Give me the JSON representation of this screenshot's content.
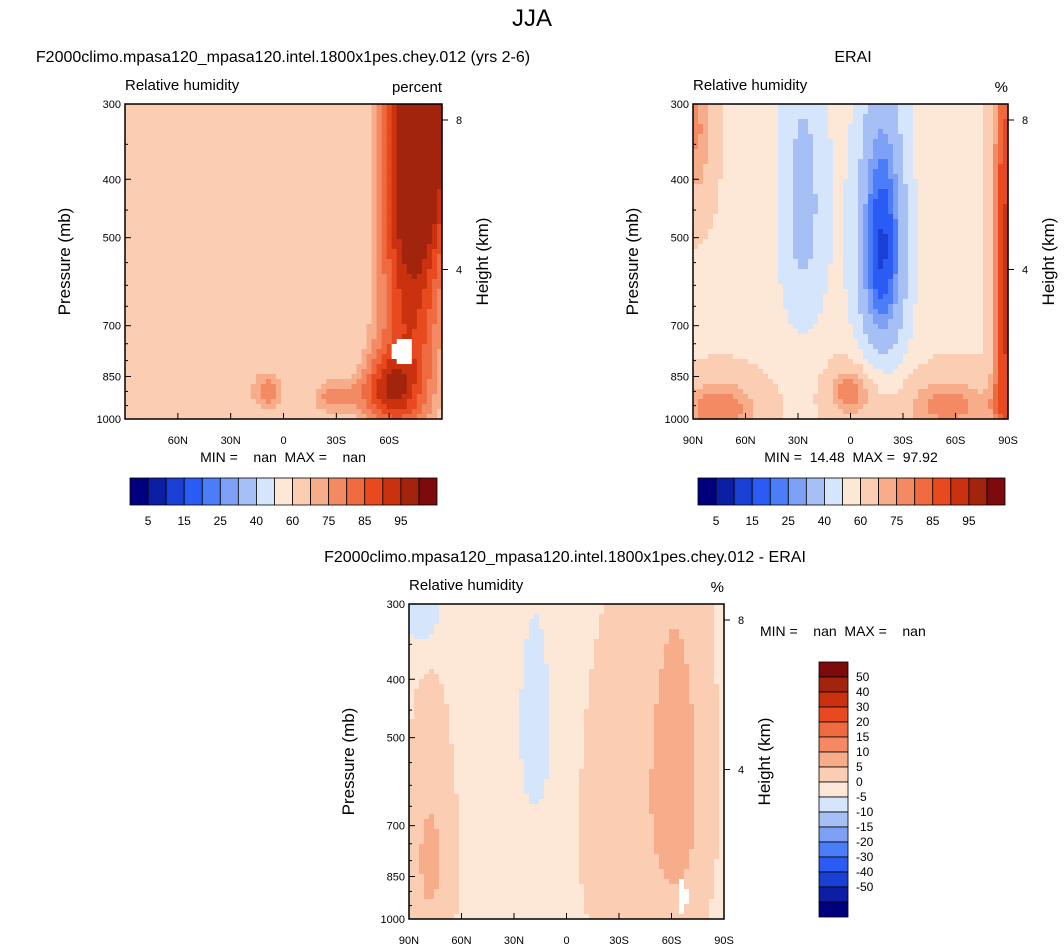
{
  "page": {
    "title": "JJA"
  },
  "colors": {
    "abs": [
      "#00007f",
      "#0c1ea3",
      "#1a3fd4",
      "#2a5cf5",
      "#4a7df7",
      "#7d9ff5",
      "#a6bff5",
      "#d5e5fb",
      "#fde8d8",
      "#fbcdb3",
      "#f7ac8a",
      "#f38a64",
      "#ef6a3e",
      "#e8491f",
      "#c9310f",
      "#a3240c",
      "#7d0b0b"
    ],
    "diff": [
      "#00007f",
      "#0c1ea3",
      "#1a3fd4",
      "#2a5cf5",
      "#4a7df7",
      "#7d9ff5",
      "#a6bff5",
      "#d5e5fb",
      "#fde8d8",
      "#fbcdb3",
      "#f7ac8a",
      "#f38a64",
      "#ef6a3e",
      "#e8491f",
      "#c9310f",
      "#a3240c",
      "#7d0b0b"
    ]
  },
  "chart_data": [
    {
      "id": "model",
      "type": "heatmap",
      "title": "F2000climo.mpasa120_mpasa120.intel.1800x1pes.chey.012 (yrs 2-6)",
      "left_label": "Relative humidity",
      "right_label": "percent",
      "ylabel": "Pressure (mb)",
      "ylabel2": "Height (km)",
      "x_ticks": [
        "60N",
        "30N",
        "0",
        "30S",
        "60S"
      ],
      "x_tick_values": [
        60,
        30,
        0,
        -30,
        -60
      ],
      "y_ticks": [
        "300",
        "400",
        "500",
        "700",
        "850",
        "1000"
      ],
      "y_tick_values": [
        300,
        400,
        500,
        700,
        850,
        1000
      ],
      "height_ticks": [
        "8",
        "4"
      ],
      "height_tick_values": [
        8,
        4
      ],
      "xlim": [
        90,
        -90
      ],
      "ylim": [
        1000,
        300
      ],
      "stats": "MIN =    nan  MAX =    nan",
      "colorbar_labels": [
        "5",
        "15",
        "25",
        "40",
        "60",
        "75",
        "85",
        "95"
      ],
      "levels": [
        5,
        10,
        15,
        20,
        25,
        30,
        40,
        50,
        60,
        70,
        75,
        80,
        85,
        90,
        95
      ],
      "field": {
        "base": 60,
        "blobs": [
          {
            "lat": -80,
            "p": 330,
            "sx": 14,
            "sp": 140,
            "a": 30
          },
          {
            "lat": -72,
            "p": 600,
            "sx": 15,
            "sp": 350,
            "a": 30
          },
          {
            "lat": -58,
            "p": 900,
            "sx": 12,
            "sp": 90,
            "a": 22
          },
          {
            "lat": 9,
            "p": 900,
            "sx": 8,
            "sp": 60,
            "a": 18
          },
          {
            "lat": -28,
            "p": 920,
            "sx": 10,
            "sp": 50,
            "a": 17
          }
        ],
        "mask": [
          {
            "lat": -68,
            "p": 770,
            "sx": 6,
            "sp": 40,
            "v": 0
          }
        ]
      }
    },
    {
      "id": "obs",
      "type": "heatmap",
      "title": "ERAI",
      "left_label": "Relative humidity",
      "right_label": "%",
      "ylabel": "Pressure (mb)",
      "ylabel2": "Height (km)",
      "x_ticks": [
        "90N",
        "60N",
        "30N",
        "0",
        "30S",
        "60S",
        "90S"
      ],
      "x_tick_values": [
        90,
        60,
        30,
        0,
        -30,
        -60,
        -90
      ],
      "y_ticks": [
        "300",
        "400",
        "500",
        "700",
        "850",
        "1000"
      ],
      "y_tick_values": [
        300,
        400,
        500,
        700,
        850,
        1000
      ],
      "height_ticks": [
        "8",
        "4"
      ],
      "height_tick_values": [
        8,
        4
      ],
      "xlim": [
        90,
        -90
      ],
      "ylim": [
        1000,
        300
      ],
      "stats": "MIN =  14.48  MAX =  97.92",
      "colorbar_labels": [
        "5",
        "15",
        "25",
        "40",
        "60",
        "75",
        "85",
        "95"
      ],
      "levels": [
        5,
        10,
        15,
        20,
        25,
        30,
        40,
        50,
        60,
        70,
        75,
        80,
        85,
        90,
        95
      ],
      "field": {
        "base": 58,
        "blobs": [
          {
            "lat": -18,
            "p": 520,
            "sx": 11,
            "sp": 200,
            "a": -44
          },
          {
            "lat": 27,
            "p": 440,
            "sx": 11,
            "sp": 200,
            "a": -22
          },
          {
            "lat": -88,
            "p": 600,
            "sx": 5,
            "sp": 400,
            "a": 35
          },
          {
            "lat": 88,
            "p": 330,
            "sx": 7,
            "sp": 90,
            "a": 18
          },
          {
            "lat": 0,
            "p": 900,
            "sx": 10,
            "sp": 70,
            "a": 22
          },
          {
            "lat": -55,
            "p": 950,
            "sx": 22,
            "sp": 80,
            "a": 20
          },
          {
            "lat": 75,
            "p": 960,
            "sx": 18,
            "sp": 80,
            "a": 22
          }
        ],
        "mask": []
      }
    },
    {
      "id": "diff",
      "type": "heatmap",
      "title": "F2000climo.mpasa120_mpasa120.intel.1800x1pes.chey.012 - ERAI",
      "left_label": "Relative humidity",
      "right_label": "%",
      "ylabel": "Pressure (mb)",
      "ylabel2": "Height (km)",
      "x_ticks": [
        "90N",
        "60N",
        "30N",
        "0",
        "30S",
        "60S",
        "90S"
      ],
      "x_tick_values": [
        90,
        60,
        30,
        0,
        -30,
        -60,
        -90
      ],
      "y_ticks": [
        "300",
        "400",
        "500",
        "700",
        "850",
        "1000"
      ],
      "y_tick_values": [
        300,
        400,
        500,
        700,
        850,
        1000
      ],
      "height_ticks": [
        "8",
        "4"
      ],
      "height_tick_values": [
        8,
        4
      ],
      "xlim": [
        90,
        -90
      ],
      "ylim": [
        1000,
        300
      ],
      "stats": "MIN =    nan  MAX =    nan",
      "colorbar_labels": [
        "50",
        "40",
        "30",
        "20",
        "15",
        "10",
        "5",
        "0",
        "-5",
        "-10",
        "-15",
        "-20",
        "-30",
        "-40",
        "-50"
      ],
      "levels": [
        -50,
        -40,
        -30,
        -20,
        -15,
        -10,
        -5,
        0,
        5,
        10,
        15,
        20,
        30,
        40,
        50
      ],
      "field": {
        "base": 3,
        "blobs": [
          {
            "lat": 18,
            "p": 480,
            "sx": 6,
            "sp": 120,
            "a": -8
          },
          {
            "lat": 82,
            "p": 310,
            "sx": 8,
            "sp": 30,
            "a": -8
          },
          {
            "lat": -62,
            "p": 600,
            "sx": 14,
            "sp": 320,
            "a": 10
          },
          {
            "lat": 78,
            "p": 800,
            "sx": 10,
            "sp": 260,
            "a": 8
          },
          {
            "lat": -25,
            "p": 720,
            "sx": 12,
            "sp": 280,
            "a": 6
          }
        ],
        "mask": [
          {
            "lat": -66,
            "p": 920,
            "sx": 3,
            "sp": 60,
            "v": 0
          }
        ]
      }
    }
  ]
}
